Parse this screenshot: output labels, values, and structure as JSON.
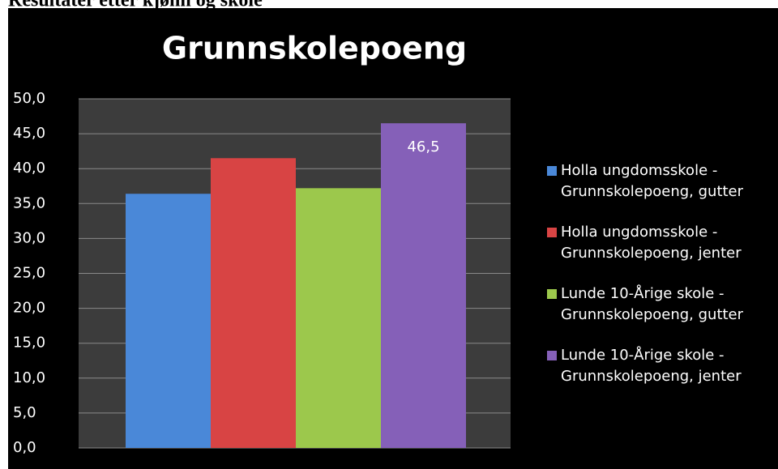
{
  "heading": "Resultater etter kjønn og skole",
  "chart_data": {
    "type": "bar",
    "title": "Grunnskolepoeng",
    "categories": [
      null
    ],
    "series": [
      {
        "name": "Holla ungdomsskole - Grunnskolepoeng, gutter",
        "color": "#4a88d8",
        "values": [
          36.4
        ]
      },
      {
        "name": "Holla ungdomsskole - Grunnskolepoeng, jenter",
        "color": "#d84444",
        "values": [
          41.5
        ]
      },
      {
        "name": "Lunde 10-Årige skole - Grunnskolepoeng, gutter",
        "color": "#9cc84c",
        "values": [
          37.2
        ]
      },
      {
        "name": "Lunde 10-Årige skole - Grunnskolepoeng, jenter",
        "color": "#8560b8",
        "values": [
          46.5
        ],
        "value_labels": [
          "46,5"
        ]
      }
    ],
    "ylim": [
      0,
      50
    ],
    "yticks": [
      {
        "value": 0,
        "label": "0,0"
      },
      {
        "value": 5,
        "label": "5,0"
      },
      {
        "value": 10,
        "label": "10,0"
      },
      {
        "value": 15,
        "label": "15,0"
      },
      {
        "value": 20,
        "label": "20,0"
      },
      {
        "value": 25,
        "label": "25,0"
      },
      {
        "value": 30,
        "label": "30,0"
      },
      {
        "value": 35,
        "label": "35,0"
      },
      {
        "value": 40,
        "label": "40,0"
      },
      {
        "value": 45,
        "label": "45,0"
      },
      {
        "value": 50,
        "label": "50,0"
      }
    ],
    "grid": true,
    "legend": "right"
  }
}
